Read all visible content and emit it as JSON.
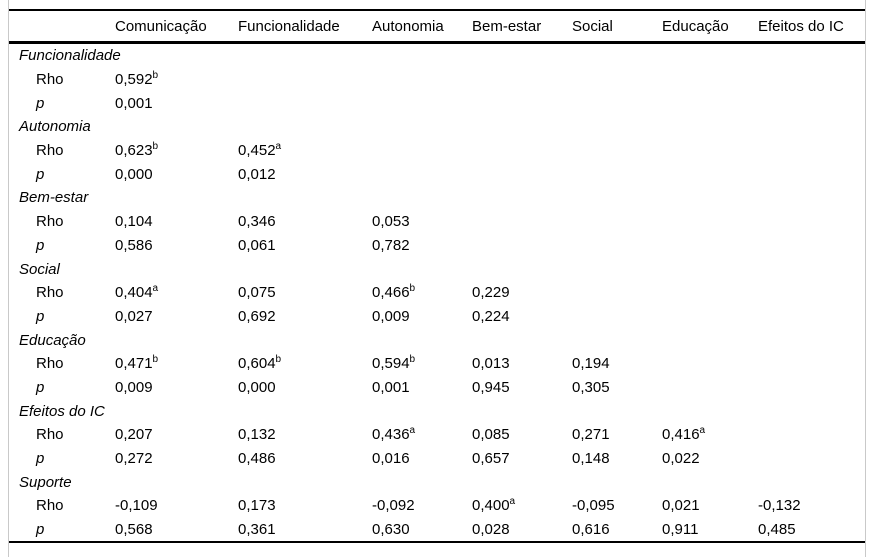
{
  "table": {
    "columns": [
      "",
      "Comunicação",
      "Funcionalidade",
      "Autonomia",
      "Bem-estar",
      "Social",
      "Educação",
      "Efeitos do IC"
    ],
    "rho_label": "Rho",
    "p_label": "p",
    "groups": [
      {
        "name": "Funcionalidade",
        "rho": [
          "0,592^b"
        ],
        "p": [
          "0,001"
        ]
      },
      {
        "name": "Autonomia",
        "rho": [
          "0,623^b",
          "0,452^a"
        ],
        "p": [
          "0,000",
          "0,012"
        ]
      },
      {
        "name": "Bem-estar",
        "rho": [
          "0,104",
          "0,346",
          "0,053"
        ],
        "p": [
          "0,586",
          "0,061",
          "0,782"
        ]
      },
      {
        "name": "Social",
        "rho": [
          "0,404^a",
          "0,075",
          "0,466^b",
          "0,229"
        ],
        "p": [
          "0,027",
          "0,692",
          "0,009",
          "0,224"
        ]
      },
      {
        "name": "Educação",
        "rho": [
          "0,471^b",
          "0,604^b",
          "0,594^b",
          "0,013",
          "0,194"
        ],
        "p": [
          "0,009",
          "0,000",
          "0,001",
          "0,945",
          "0,305"
        ]
      },
      {
        "name": "Efeitos do IC",
        "rho": [
          "0,207",
          "0,132",
          "0,436^a",
          "0,085",
          "0,271",
          "0,416^a"
        ],
        "p": [
          "0,272",
          "0,486",
          "0,016",
          "0,657",
          "0,148",
          "0,022"
        ]
      },
      {
        "name": "Suporte",
        "rho": [
          "-0,109",
          "0,173",
          "-0,092",
          "0,400^a",
          "-0,095",
          "0,021",
          "-0,132"
        ],
        "p": [
          "0,568",
          "0,361",
          "0,630",
          "0,028",
          "0,616",
          "0,911",
          "0,485"
        ]
      }
    ],
    "colors": {
      "rule": "#000000",
      "side_border": "#c9c9c9",
      "text": "#000000",
      "background": "#ffffff"
    }
  }
}
